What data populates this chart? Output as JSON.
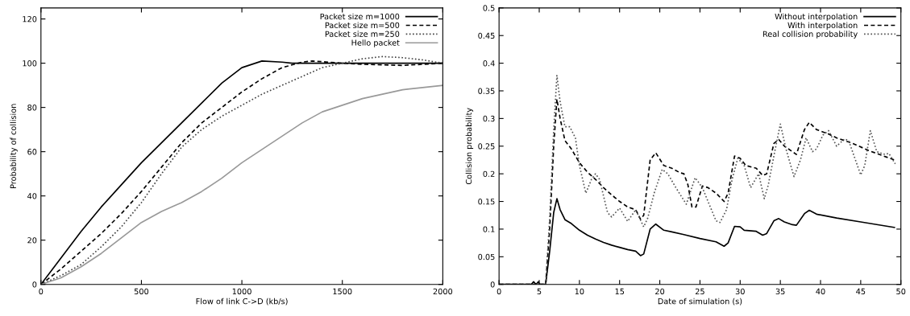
{
  "chart_data": [
    {
      "type": "line",
      "xlabel": "Flow of link C->D (kb/s)",
      "ylabel": "Probability of collision",
      "xlim": [
        0,
        2000
      ],
      "ylim": [
        0,
        125
      ],
      "xticks": [
        0,
        500,
        1000,
        1500,
        2000
      ],
      "yticks": [
        0,
        20,
        40,
        60,
        80,
        100,
        120
      ],
      "grid": false,
      "legend": "top right",
      "series": [
        {
          "name": "Packet size m=1000",
          "color": "#000000",
          "line_style": "solid",
          "x": [
            0,
            100,
            200,
            300,
            400,
            500,
            600,
            700,
            800,
            900,
            1000,
            1100,
            1200,
            1250,
            1400,
            1600,
            2000
          ],
          "values": [
            0,
            12,
            24,
            35,
            45,
            55,
            64,
            73,
            82,
            91,
            98,
            101,
            100.5,
            100,
            100,
            100,
            100
          ]
        },
        {
          "name": "Packet size m=500",
          "color": "#000000",
          "line_style": "dashed",
          "x": [
            0,
            100,
            200,
            300,
            400,
            500,
            600,
            700,
            800,
            900,
            1000,
            1100,
            1200,
            1300,
            1350,
            1500,
            1600,
            1800,
            2000
          ],
          "values": [
            0,
            7,
            15,
            23,
            32,
            42,
            53,
            64,
            73,
            80,
            87,
            93,
            98,
            100.5,
            101,
            100,
            99.5,
            99,
            100
          ]
        },
        {
          "name": "Packet size m=250",
          "color": "#444444",
          "line_style": "dotted",
          "x": [
            0,
            100,
            200,
            300,
            400,
            500,
            600,
            700,
            800,
            900,
            1000,
            1100,
            1200,
            1300,
            1400,
            1500,
            1600,
            1700,
            1800,
            1900,
            2000
          ],
          "values": [
            0,
            4,
            9,
            17,
            26,
            37,
            50,
            62,
            70,
            76,
            81,
            86,
            90,
            94,
            98,
            100,
            102,
            103,
            102.5,
            101.5,
            100
          ]
        },
        {
          "name": "Hello packet",
          "color": "#999999",
          "line_style": "solid",
          "x": [
            0,
            100,
            200,
            300,
            400,
            500,
            600,
            700,
            800,
            900,
            1000,
            1100,
            1200,
            1300,
            1400,
            1500,
            1600,
            1700,
            1800,
            1900,
            2000
          ],
          "values": [
            0,
            3,
            8,
            14,
            21,
            28,
            33,
            37,
            42,
            48,
            55,
            61,
            67,
            73,
            78,
            81,
            84,
            86,
            88,
            89,
            90
          ]
        }
      ]
    },
    {
      "type": "line",
      "xlabel": "Date of simulation (s)",
      "ylabel": "Collision probability",
      "xlim": [
        0,
        50
      ],
      "ylim": [
        0,
        0.5
      ],
      "xticks": [
        0,
        5,
        10,
        15,
        20,
        25,
        30,
        35,
        40,
        45,
        50
      ],
      "yticks": [
        0,
        0.05,
        0.1,
        0.15,
        0.2,
        0.25,
        0.3,
        0.35,
        0.4,
        0.45,
        0.5
      ],
      "grid": false,
      "legend": "top right",
      "series": [
        {
          "name": "Without interpolation",
          "color": "#000000",
          "line_style": "solid",
          "x": [
            0,
            2,
            4,
            4.3,
            4.6,
            4.9,
            5,
            5.8,
            6.3,
            6.8,
            7.2,
            7.6,
            8.2,
            9,
            10,
            11,
            12,
            13,
            14,
            15,
            16,
            17,
            17.6,
            18,
            18.8,
            19.5,
            20.5,
            21.5,
            23,
            25,
            27,
            28,
            28.5,
            29.3,
            30,
            30.5,
            32,
            32.8,
            33.3,
            34.2,
            34.8,
            35.5,
            36.5,
            37,
            38,
            38.6,
            39.5,
            42,
            45,
            49.2
          ],
          "values": [
            0,
            0,
            0,
            0.005,
            0,
            0.005,
            0,
            0,
            0.06,
            0.13,
            0.155,
            0.135,
            0.117,
            0.11,
            0.098,
            0.089,
            0.082,
            0.076,
            0.071,
            0.067,
            0.063,
            0.06,
            0.052,
            0.055,
            0.1,
            0.109,
            0.098,
            0.095,
            0.09,
            0.083,
            0.077,
            0.069,
            0.075,
            0.105,
            0.104,
            0.098,
            0.096,
            0.089,
            0.092,
            0.115,
            0.119,
            0.113,
            0.108,
            0.107,
            0.128,
            0.134,
            0.127,
            0.12,
            0.113,
            0.103
          ]
        },
        {
          "name": "With interpolation",
          "color": "#000000",
          "line_style": "dashed",
          "x": [
            0,
            5.8,
            6.3,
            6.8,
            7.2,
            7.6,
            8.2,
            9,
            10,
            11,
            12,
            13,
            14,
            15,
            16,
            17,
            17.6,
            18,
            18.8,
            19.5,
            20.5,
            21.5,
            22.5,
            23,
            23.5,
            24,
            24.5,
            25.3,
            26,
            27,
            28,
            28.5,
            29.3,
            30,
            30.7,
            32,
            32.8,
            33.3,
            34.2,
            34.8,
            35.5,
            37,
            38,
            38.6,
            39.5,
            41,
            42,
            44,
            46,
            49.2
          ],
          "values": [
            0,
            0,
            0.1,
            0.25,
            0.335,
            0.3,
            0.26,
            0.245,
            0.22,
            0.203,
            0.19,
            0.175,
            0.162,
            0.15,
            0.14,
            0.135,
            0.118,
            0.125,
            0.225,
            0.238,
            0.215,
            0.21,
            0.202,
            0.2,
            0.18,
            0.14,
            0.14,
            0.178,
            0.175,
            0.165,
            0.15,
            0.165,
            0.232,
            0.228,
            0.215,
            0.21,
            0.197,
            0.2,
            0.255,
            0.262,
            0.25,
            0.235,
            0.28,
            0.293,
            0.28,
            0.272,
            0.265,
            0.255,
            0.242,
            0.225
          ]
        },
        {
          "name": "Real collision probability",
          "color": "#555555",
          "line_style": "dotted",
          "x": [
            0,
            5.8,
            6.3,
            6.8,
            7.2,
            7.6,
            8.2,
            8.8,
            9.5,
            10,
            10.8,
            11.5,
            12,
            12.5,
            13.5,
            14,
            15,
            16,
            17,
            18,
            18.5,
            19.3,
            20.3,
            21,
            22,
            23.3,
            24.4,
            25.3,
            26,
            27,
            27.5,
            28.3,
            29,
            29.7,
            30.5,
            31.3,
            32.3,
            33,
            33.5,
            34.3,
            35,
            35.7,
            36.7,
            37.5,
            38.2,
            39,
            39.5,
            40.3,
            41,
            42,
            43,
            43.5,
            45,
            45.5,
            46.2,
            47,
            48,
            48.5,
            49.3
          ],
          "values": [
            0,
            0,
            0.12,
            0.28,
            0.378,
            0.33,
            0.285,
            0.285,
            0.265,
            0.215,
            0.165,
            0.19,
            0.2,
            0.19,
            0.13,
            0.122,
            0.138,
            0.114,
            0.135,
            0.104,
            0.12,
            0.165,
            0.208,
            0.2,
            0.175,
            0.145,
            0.193,
            0.175,
            0.15,
            0.115,
            0.112,
            0.135,
            0.19,
            0.228,
            0.215,
            0.175,
            0.2,
            0.155,
            0.18,
            0.24,
            0.29,
            0.245,
            0.195,
            0.225,
            0.265,
            0.24,
            0.245,
            0.27,
            0.278,
            0.25,
            0.263,
            0.26,
            0.198,
            0.215,
            0.278,
            0.24,
            0.235,
            0.237,
            0.218
          ]
        }
      ]
    }
  ]
}
